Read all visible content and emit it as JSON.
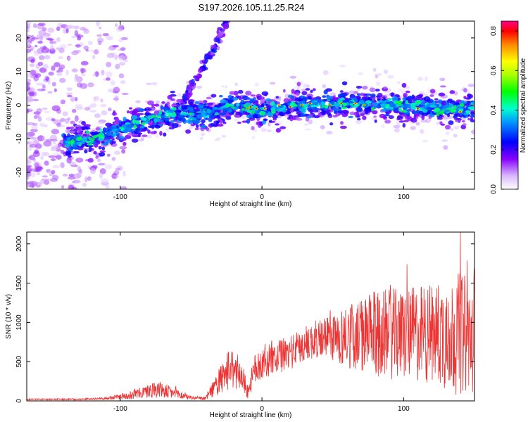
{
  "title": "S197.2026.105.11.25.R24",
  "chart_data": [
    {
      "type": "heatmap",
      "name": "spectrogram",
      "xlabel": "Height of straight line (km)",
      "ylabel": "Frequency (Hz)",
      "xlim": [
        -166,
        150
      ],
      "ylim": [
        -25,
        25
      ],
      "xticks": [
        -100,
        0,
        100
      ],
      "xtick_labels": [
        "-100",
        "0",
        "100"
      ],
      "yticks": [
        -20,
        -10,
        0,
        10,
        20
      ],
      "ytick_labels": [
        "-20",
        "-10",
        "0",
        "10",
        "20"
      ],
      "colorbar": {
        "label": "Normalized spectral amplitude",
        "range": [
          0.0,
          0.85
        ],
        "ticks": [
          0.0,
          0.2,
          0.4,
          0.6,
          0.8
        ],
        "tick_labels": [
          "0.0",
          "0.2",
          "0.4",
          "0.6",
          "0.8"
        ]
      },
      "ridge": {
        "description_points_x": [
          -135,
          -120,
          -100,
          -80,
          -60,
          -40,
          -20,
          0,
          25,
          50,
          75,
          100,
          125,
          148
        ],
        "description_points_y": [
          -11,
          -10,
          -7,
          -4,
          -2,
          -3,
          0,
          -1.5,
          0,
          0.5,
          0.5,
          0,
          -1,
          -1
        ]
      },
      "streak": {
        "x": [
          -60,
          -24
        ],
        "y": [
          -3,
          25
        ]
      }
    },
    {
      "type": "line",
      "name": "snr",
      "xlabel": "Height of straight line (km)",
      "ylabel": "SNR (10 * v/v)",
      "xlim": [
        -166,
        150
      ],
      "ylim": [
        0,
        2150
      ],
      "xticks": [
        -100,
        0,
        100
      ],
      "xtick_labels": [
        "-100",
        "0",
        "100"
      ],
      "yticks": [
        0,
        500,
        1000,
        1500,
        2000
      ],
      "ytick_labels": [
        "0",
        "500",
        "1000",
        "1500",
        "2000"
      ],
      "color": "#ee3333",
      "envelope": {
        "x": [
          -166,
          -130,
          -110,
          -90,
          -75,
          -65,
          -50,
          -40,
          -30,
          -22,
          -15,
          -10,
          -5,
          0,
          20,
          40,
          60,
          80,
          100,
          120,
          140,
          150
        ],
        "mean": [
          20,
          20,
          30,
          80,
          150,
          110,
          40,
          30,
          250,
          380,
          350,
          120,
          400,
          480,
          620,
          800,
          820,
          850,
          850,
          860,
          850,
          820
        ],
        "amplitude": [
          8,
          10,
          15,
          60,
          110,
          90,
          25,
          20,
          180,
          250,
          200,
          100,
          200,
          200,
          220,
          250,
          400,
          550,
          600,
          650,
          800,
          700
        ]
      },
      "max_peak": {
        "x": 140,
        "y": 2150
      }
    }
  ]
}
